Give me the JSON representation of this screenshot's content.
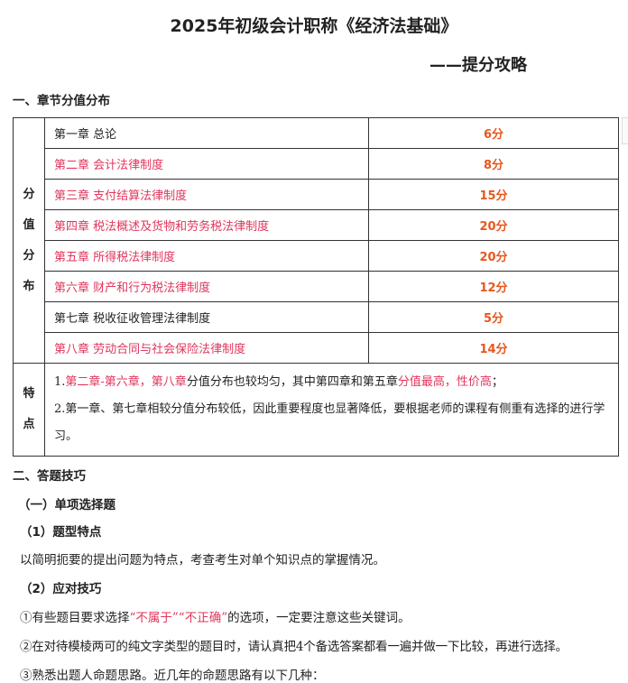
{
  "title": "2025年初级会计职称《经济法基础》",
  "subtitle": "——提分攻略",
  "section1": "一、章节分值分布",
  "table": {
    "side_label": [
      "分",
      "值",
      "分",
      "布"
    ],
    "rows": [
      {
        "chapter": "第一章 总论",
        "score": "6分",
        "highlight": false
      },
      {
        "chapter": "第二章 会计法律制度",
        "score": "8分",
        "highlight": true
      },
      {
        "chapter": "第三章 支付结算法律制度",
        "score": "15分",
        "highlight": true
      },
      {
        "chapter": "第四章 税法概述及货物和劳务税法律制度",
        "score": "20分",
        "highlight": true
      },
      {
        "chapter": "第五章 所得税法律制度",
        "score": "20分",
        "highlight": true
      },
      {
        "chapter": "第六章 财产和行为税法律制度",
        "score": "12分",
        "highlight": true
      },
      {
        "chapter": "第七章 税收征收管理法律制度",
        "score": "5分",
        "highlight": false
      },
      {
        "chapter": "第八章 劳动合同与社会保险法律制度",
        "score": "14分",
        "highlight": true
      }
    ],
    "feature_label": [
      "特",
      "点"
    ],
    "feature1": {
      "a": "1.",
      "b": "第二章-第六章，第八章",
      "c": "分值分布也较均匀，其中第四章和第五章",
      "d": "分值最高，性价高",
      "e": "；"
    },
    "feature2": "2.第一章、第七章相较分值分布较低，因此重要程度也显著降低，要根据老师的课程有侧重有选择的进行学习。"
  },
  "section2": "二、答题技巧",
  "sub1": "（一）单项选择题",
  "sub1a": "（1）题型特点",
  "para1": "以简明扼要的提出问题为特点，考查考生对单个知识点的掌握情况。",
  "sub1b": "（2）应对技巧",
  "tip1": {
    "a": "①有些题目要求选择",
    "b": "“不属于”“不正确”",
    "c": "的选项，一定要注意这些关键词。"
  },
  "tip2": "②在对待模棱两可的纯文字类型的题目时，请认真把4个备选答案都看一遍并做一下比较，再进行选择。",
  "tip3": "③熟悉出题人命题思路。近几年的命题思路有以下几种：",
  "colors": {
    "highlight": "#e0365c",
    "score": "#e8561e"
  }
}
